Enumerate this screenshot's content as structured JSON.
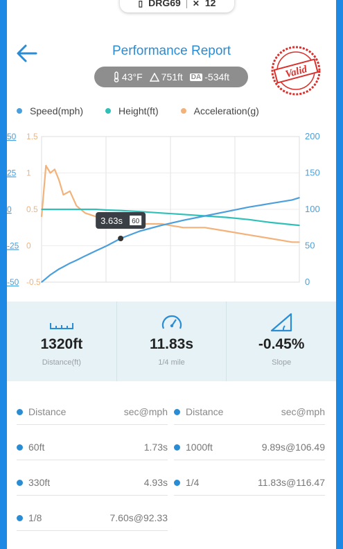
{
  "device": {
    "name": "DRG69",
    "count": "12"
  },
  "header": {
    "title": "Performance Report",
    "stamp_text": "Valid"
  },
  "conditions": {
    "temp": "43°F",
    "altitude": "751ft",
    "da_badge": "DA",
    "density_altitude": "-534ft"
  },
  "legend": [
    {
      "label": "Speed(mph)",
      "color": "#4a9fdc"
    },
    {
      "label": "Height(ft)",
      "color": "#2fc0b8"
    },
    {
      "label": "Acceleration(g)",
      "color": "#f3b27a"
    }
  ],
  "chart_data": {
    "type": "line",
    "x": [
      0,
      0.2,
      0.4,
      0.6,
      0.8,
      1.0,
      1.3,
      1.6,
      2.0,
      2.5,
      3.0,
      3.63,
      4.5,
      5.5,
      6.5,
      7.5,
      8.5,
      9.5,
      10.5,
      11.5,
      11.83
    ],
    "series": [
      {
        "name": "Speed(mph)",
        "color": "#4a9fdc",
        "axis": "right",
        "values": [
          0,
          5,
          10,
          14,
          18,
          21,
          26,
          30,
          36,
          43,
          50,
          60,
          70,
          78,
          85,
          91,
          97,
          103,
          108,
          113,
          116
        ]
      },
      {
        "name": "Height(ft)",
        "color": "#2fc0b8",
        "axis": "left-outer",
        "values": [
          0,
          0,
          0,
          0,
          0,
          0,
          0,
          0,
          0,
          0,
          -0.5,
          -0.8,
          -1.5,
          -2.5,
          -3.5,
          -4.5,
          -5.5,
          -7,
          -9,
          -10.5,
          -11
        ]
      },
      {
        "name": "Acceleration(g)",
        "color": "#f3b27a",
        "axis": "left-inner",
        "values": [
          0.4,
          1.1,
          1.0,
          1.05,
          0.9,
          0.7,
          0.75,
          0.55,
          0.45,
          0.4,
          0.4,
          0.35,
          0.3,
          0.3,
          0.25,
          0.25,
          0.2,
          0.15,
          0.1,
          0.05,
          0.05
        ]
      }
    ],
    "axes": {
      "left_outer": {
        "ticks": [
          "50",
          "25",
          "0",
          "-25",
          "-50"
        ],
        "range": [
          -50,
          50
        ]
      },
      "left_inner": {
        "ticks": [
          "1.5",
          "1",
          "0.5",
          "0",
          "-0.5"
        ],
        "range": [
          -0.5,
          1.5
        ]
      },
      "right": {
        "ticks": [
          "200",
          "150",
          "100",
          "50",
          "0"
        ],
        "range": [
          0,
          200
        ]
      }
    },
    "grid": true,
    "tooltip": {
      "time": "3.63s",
      "value": "60"
    }
  },
  "stats": [
    {
      "value": "1320ft",
      "label": "Distance(ft)",
      "icon": "ruler-icon"
    },
    {
      "value": "11.83s",
      "label": "1/4 mile",
      "icon": "speedometer-icon"
    },
    {
      "value": "-0.45%",
      "label": "Slope",
      "icon": "slope-icon"
    }
  ],
  "table": {
    "header": {
      "left_key": "Distance",
      "left_val": "sec@mph",
      "right_key": "Distance",
      "right_val": "sec@mph"
    },
    "rows": [
      {
        "lk": "60ft",
        "lv": "1.73s",
        "rk": "1000ft",
        "rv": "9.89s@106.49"
      },
      {
        "lk": "330ft",
        "lv": "4.93s",
        "rk": "1/4",
        "rv": "11.83s@116.47"
      },
      {
        "lk": "1/8",
        "lv": "7.60s@92.33",
        "rk": "",
        "rv": ""
      }
    ]
  }
}
